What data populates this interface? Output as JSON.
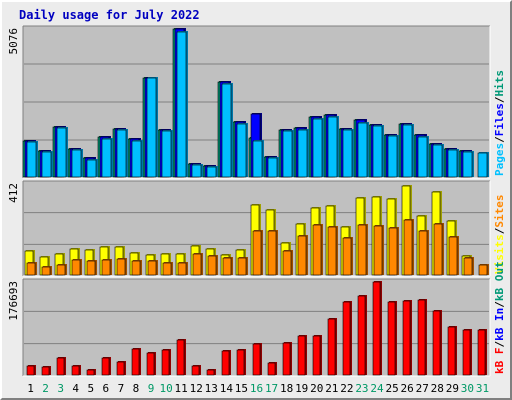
{
  "title": "Daily usage for July 2022",
  "colors": {
    "title": "#0000c0",
    "pages": "#00c0ff",
    "pages_dark": "#0077a8",
    "files": "#0000ff",
    "files_dark": "#000080",
    "hits": "#009977",
    "hits_dark": "#005544",
    "visits": "#ffff00",
    "visits_dark": "#a0a000",
    "sites": "#ff8800",
    "sites_dark": "#a05000",
    "kbf": "#ff0000",
    "kbf_dark": "#900000",
    "kbin": "#0000ff",
    "kbout": "#009977",
    "weekday": "#000000",
    "weekend": "#009966",
    "panel_bg": "#c0c0c0",
    "grid": "#808080"
  },
  "chart_data": [
    {
      "type": "bar",
      "ymax_label": "5076",
      "ylim": [
        0,
        5076
      ],
      "legend_placement": "right",
      "legend": [
        {
          "key": "pages",
          "text": "Pages"
        },
        {
          "key": "sep",
          "text": "/"
        },
        {
          "key": "files",
          "text": "Files"
        },
        {
          "key": "sep",
          "text": "/"
        },
        {
          "key": "hits",
          "text": "Hits"
        }
      ],
      "series": [
        {
          "name": "Hits",
          "key": "hits",
          "values": [
            1270,
            930,
            1730,
            990,
            670,
            1380,
            1680,
            1330,
            3420,
            1640,
            5076,
            460,
            410,
            3280,
            1900,
            1370,
            710,
            1650,
            1700,
            2080,
            2140,
            1670,
            1970,
            1820,
            1470,
            1850,
            1460,
            1160,
            1000,
            930,
            0
          ]
        },
        {
          "name": "Files",
          "key": "files",
          "values": [
            1270,
            930,
            1730,
            990,
            670,
            1380,
            1680,
            1330,
            3420,
            1640,
            5076,
            460,
            410,
            3280,
            1900,
            2190,
            710,
            1650,
            1700,
            2080,
            2140,
            1670,
            1970,
            1820,
            1470,
            1850,
            1460,
            1160,
            1000,
            930,
            0
          ]
        },
        {
          "name": "Pages",
          "key": "pages",
          "values": [
            1230,
            880,
            1700,
            950,
            620,
            1330,
            1620,
            1270,
            3390,
            1590,
            4960,
            430,
            380,
            3200,
            1830,
            1260,
            670,
            1610,
            1650,
            2000,
            2080,
            1630,
            1890,
            1760,
            1430,
            1800,
            1410,
            1120,
            960,
            880,
            860
          ]
        }
      ]
    },
    {
      "type": "bar",
      "ymax_label": "412",
      "ylim": [
        0,
        412
      ],
      "legend_placement": "right",
      "legend": [
        {
          "key": "visits",
          "text": "Visits"
        },
        {
          "key": "sep",
          "text": "/"
        },
        {
          "key": "sites",
          "text": "Sites"
        }
      ],
      "series": [
        {
          "name": "Visits",
          "key": "visits",
          "values": [
            110,
            85,
            100,
            120,
            115,
            130,
            130,
            105,
            95,
            100,
            100,
            135,
            120,
            95,
            115,
            320,
            295,
            150,
            235,
            305,
            315,
            220,
            350,
            355,
            345,
            405,
            270,
            375,
            245,
            90,
            0
          ]
        },
        {
          "name": "Sites",
          "key": "sites",
          "values": [
            60,
            40,
            50,
            70,
            65,
            70,
            75,
            65,
            65,
            60,
            60,
            100,
            90,
            80,
            80,
            200,
            200,
            110,
            180,
            230,
            220,
            170,
            230,
            225,
            215,
            250,
            200,
            235,
            175,
            80,
            50
          ]
        }
      ]
    },
    {
      "type": "bar",
      "ymax_label": "176693",
      "ylim": [
        0,
        176693
      ],
      "legend_placement": "right",
      "legend": [
        {
          "key": "kbf",
          "text": "kB F"
        },
        {
          "key": "sep",
          "text": "/"
        },
        {
          "key": "kbin",
          "text": "kB In"
        },
        {
          "key": "sep",
          "text": "/"
        },
        {
          "key": "kbout",
          "text": "kB Out"
        }
      ],
      "series": [
        {
          "name": "kB F",
          "key": "kbf",
          "values": [
            18500,
            17000,
            33500,
            18500,
            12000,
            34500,
            26000,
            51500,
            44000,
            49000,
            67000,
            19500,
            12000,
            47000,
            49000,
            61000,
            24500,
            62000,
            75000,
            75000,
            107000,
            139500,
            150000,
            176693,
            139000,
            140500,
            143000,
            122000,
            92000,
            87000,
            87000
          ]
        }
      ]
    }
  ],
  "days": [
    {
      "label": "1",
      "weekend": false
    },
    {
      "label": "2",
      "weekend": true
    },
    {
      "label": "3",
      "weekend": true
    },
    {
      "label": "4",
      "weekend": false
    },
    {
      "label": "5",
      "weekend": false
    },
    {
      "label": "6",
      "weekend": false
    },
    {
      "label": "7",
      "weekend": false
    },
    {
      "label": "8",
      "weekend": false
    },
    {
      "label": "9",
      "weekend": true
    },
    {
      "label": "10",
      "weekend": true
    },
    {
      "label": "11",
      "weekend": false
    },
    {
      "label": "12",
      "weekend": false
    },
    {
      "label": "13",
      "weekend": false
    },
    {
      "label": "14",
      "weekend": false
    },
    {
      "label": "15",
      "weekend": false
    },
    {
      "label": "16",
      "weekend": true
    },
    {
      "label": "17",
      "weekend": true
    },
    {
      "label": "18",
      "weekend": false
    },
    {
      "label": "19",
      "weekend": false
    },
    {
      "label": "20",
      "weekend": false
    },
    {
      "label": "21",
      "weekend": false
    },
    {
      "label": "22",
      "weekend": false
    },
    {
      "label": "23",
      "weekend": true
    },
    {
      "label": "24",
      "weekend": true
    },
    {
      "label": "25",
      "weekend": false
    },
    {
      "label": "26",
      "weekend": false
    },
    {
      "label": "27",
      "weekend": false
    },
    {
      "label": "28",
      "weekend": false
    },
    {
      "label": "29",
      "weekend": false
    },
    {
      "label": "30",
      "weekend": true
    },
    {
      "label": "31",
      "weekend": true
    }
  ]
}
